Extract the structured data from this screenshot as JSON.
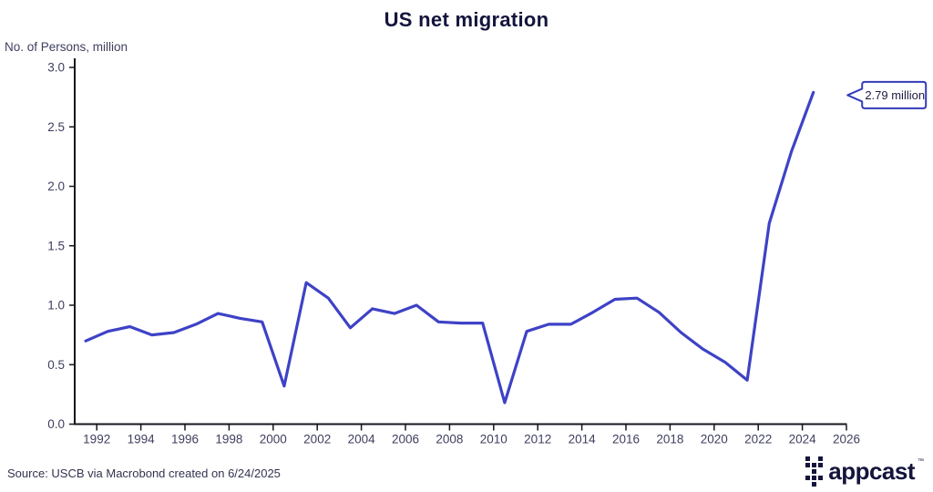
{
  "header": {
    "title": "US net migration"
  },
  "unit_label": "No. of Persons, million",
  "footer": {
    "source_text": "Source: USCB via Macrobond created on 6/24/2025"
  },
  "logo": {
    "text": "appcast",
    "trademark": "TM",
    "color": "#14143c",
    "dot_pattern": [
      [
        1,
        0,
        1
      ],
      [
        1,
        1,
        1
      ],
      [
        0,
        1,
        0
      ],
      [
        1,
        1,
        1
      ],
      [
        0,
        1,
        0
      ]
    ]
  },
  "colors": {
    "line": "#3e42c6",
    "axis": "#15151f",
    "tick_label": "#3e3e5e",
    "callout_border": "#333cbb",
    "callout_text": "#1c1c42"
  },
  "chart_data": {
    "type": "line",
    "title": "US net migration",
    "ylabel": "No. of Persons, million",
    "x": [
      1991,
      1992,
      1993,
      1994,
      1995,
      1996,
      1997,
      1998,
      1999,
      2000,
      2001,
      2002,
      2003,
      2004,
      2005,
      2006,
      2007,
      2008,
      2009,
      2010,
      2011,
      2012,
      2013,
      2014,
      2015,
      2016,
      2017,
      2018,
      2019,
      2020,
      2021,
      2022,
      2023,
      2024
    ],
    "values": [
      0.7,
      0.78,
      0.82,
      0.75,
      0.77,
      0.84,
      0.93,
      0.89,
      0.86,
      0.32,
      1.19,
      1.06,
      0.81,
      0.97,
      0.93,
      1.0,
      0.86,
      0.85,
      0.85,
      0.18,
      0.78,
      0.84,
      0.84,
      0.94,
      1.05,
      1.06,
      0.94,
      0.77,
      0.63,
      0.52,
      0.37,
      1.69,
      2.29,
      2.79
    ],
    "point_offset": 0.5,
    "x_axis": {
      "min": 1991,
      "max": 2026,
      "ticks": [
        1992,
        1994,
        1996,
        1998,
        2000,
        2002,
        2004,
        2006,
        2008,
        2010,
        2012,
        2014,
        2016,
        2018,
        2020,
        2022,
        2024,
        2026
      ]
    },
    "y_axis": {
      "min": 0.0,
      "max": 3.0,
      "ticks": [
        0.0,
        0.5,
        1.0,
        1.5,
        2.0,
        2.5,
        3.0
      ],
      "tick_format_decimals": 1
    },
    "grid": "off",
    "legend": "none",
    "annotation": {
      "label": "2.79 million",
      "year": 2024,
      "value": 2.79
    }
  }
}
